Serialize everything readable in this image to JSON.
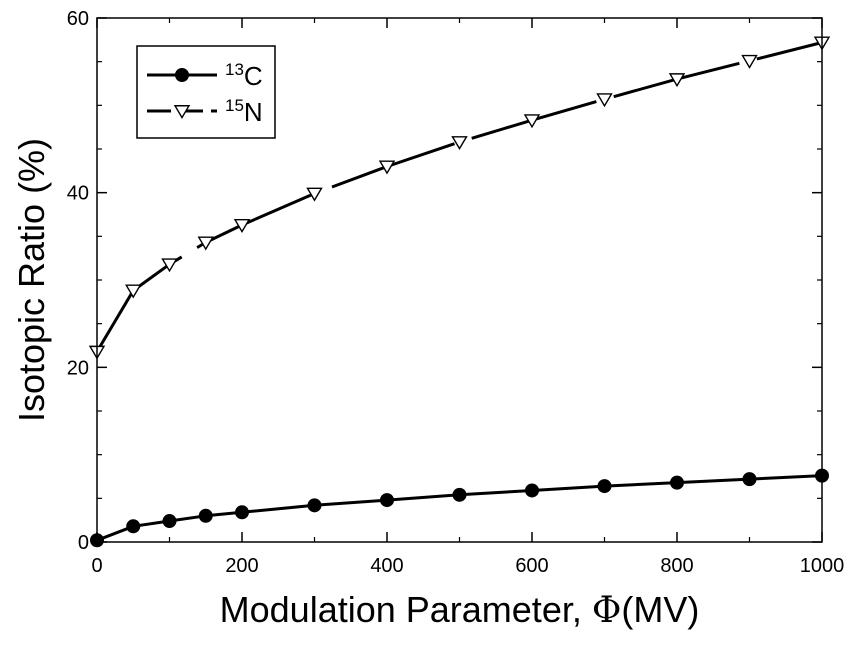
{
  "chart_data": {
    "type": "line",
    "xlabel_text": "Modulation Parameter, ",
    "xlabel_symbol": "Φ",
    "xlabel_unit": "(MV)",
    "ylabel": "Isotopic Ratio (%)",
    "xlim": [
      0,
      1000
    ],
    "ylim": [
      0,
      60
    ],
    "x_ticks": [
      0,
      200,
      400,
      600,
      800,
      1000
    ],
    "y_ticks": [
      0,
      20,
      40,
      60
    ],
    "x_minor_step": 100,
    "y_minor_step": 5,
    "grid": false,
    "legend_position": "top-left",
    "series": [
      {
        "name": "13C",
        "name_sup": "13",
        "name_base": "C",
        "marker": "filled-circle",
        "line_style": "solid",
        "color": "#000000",
        "x": [
          0,
          50,
          100,
          150,
          200,
          300,
          400,
          500,
          600,
          700,
          800,
          900,
          1000
        ],
        "y": [
          0.2,
          1.8,
          2.4,
          3.0,
          3.4,
          4.2,
          4.8,
          5.4,
          5.9,
          6.4,
          6.8,
          7.2,
          7.6
        ]
      },
      {
        "name": "15N",
        "name_sup": "15",
        "name_base": "N",
        "marker": "open-down-triangle",
        "line_style": "long-dash",
        "color": "#000000",
        "x": [
          0,
          50,
          100,
          150,
          200,
          300,
          400,
          500,
          600,
          700,
          800,
          900,
          1000
        ],
        "y": [
          21.8,
          28.8,
          31.8,
          34.3,
          36.3,
          39.9,
          43.0,
          45.8,
          48.3,
          50.7,
          53.0,
          55.1,
          57.2
        ]
      }
    ]
  }
}
